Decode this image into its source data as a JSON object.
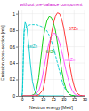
{
  "chart_data": {
    "type": "line",
    "title": "without pre-balance component",
    "x_label": "Neutron energy [MeV]",
    "y_label": "Emission cross-section [mb]",
    "xlim": [
      -2,
      30
    ],
    "ylim": [
      0.0,
      1.05
    ],
    "xticks": [
      0,
      5,
      10,
      15,
      20,
      25,
      30
    ],
    "yticks": [
      0,
      0.2,
      0.4,
      0.6,
      0.8,
      1
    ],
    "grid": true,
    "series": [
      {
        "color": "#00cccc",
        "line_style": "dashed",
        "x": [
          0,
          0.3,
          0.5,
          0.8,
          1,
          2,
          3,
          4,
          5,
          6,
          7,
          8,
          9,
          10,
          11,
          12,
          13,
          14,
          15,
          16,
          17,
          18,
          19,
          20,
          21,
          22,
          23,
          24,
          25,
          26,
          27,
          28,
          29,
          30
        ],
        "values": [
          0.0,
          0.05,
          0.35,
          0.65,
          0.78,
          0.84,
          0.86,
          0.87,
          0.87,
          0.87,
          0.87,
          0.86,
          0.85,
          0.84,
          0.82,
          0.79,
          0.74,
          0.68,
          0.6,
          0.5,
          0.4,
          0.3,
          0.2,
          0.12,
          0.07,
          0.035,
          0.015,
          0.005,
          0.002,
          0.001,
          0.0,
          0.0,
          0.0,
          0.0
        ]
      },
      {
        "color": "#00cccc",
        "line_style": "solid",
        "x": [
          0,
          0.2,
          0.5,
          0.8,
          1.0,
          1.5,
          2.0,
          2.5,
          3.0,
          3.5,
          4,
          5,
          6,
          7,
          8,
          9,
          10,
          12,
          14,
          16,
          18,
          20
        ],
        "values": [
          0.0,
          0.05,
          0.3,
          0.62,
          0.8,
          0.9,
          0.87,
          0.8,
          0.68,
          0.55,
          0.4,
          0.18,
          0.07,
          0.025,
          0.008,
          0.003,
          0.001,
          0.0,
          0.0,
          0.0,
          0.0,
          0.0
        ]
      },
      {
        "color": "#00cc00",
        "line_style": "solid",
        "x": [
          0,
          2,
          4,
          6,
          7,
          8,
          9,
          10,
          11,
          12,
          13,
          14,
          15,
          16,
          17,
          18,
          19,
          20,
          21,
          22,
          23,
          24,
          25,
          26,
          27
        ],
        "values": [
          0.0,
          0.0,
          0.0,
          0.02,
          0.08,
          0.22,
          0.45,
          0.67,
          0.82,
          0.92,
          0.97,
          0.96,
          0.9,
          0.8,
          0.65,
          0.48,
          0.32,
          0.18,
          0.09,
          0.04,
          0.015,
          0.005,
          0.001,
          0.0,
          0.0
        ]
      },
      {
        "color": "#ff44ff",
        "line_style": "solid",
        "x": [
          0,
          4,
          6,
          8,
          9,
          10,
          11,
          12,
          13,
          14,
          15,
          16,
          17,
          18,
          19,
          20,
          21,
          22,
          23,
          24,
          25,
          26,
          27,
          28,
          29,
          30
        ],
        "values": [
          0.0,
          0.0,
          0.01,
          0.06,
          0.14,
          0.26,
          0.4,
          0.54,
          0.65,
          0.72,
          0.76,
          0.76,
          0.72,
          0.65,
          0.55,
          0.44,
          0.32,
          0.22,
          0.13,
          0.07,
          0.03,
          0.012,
          0.004,
          0.001,
          0.0,
          0.0
        ]
      },
      {
        "color": "#ff2222",
        "line_style": "solid",
        "x": [
          0,
          6,
          8,
          10,
          11,
          12,
          13,
          14,
          15,
          16,
          17,
          18,
          19,
          20,
          21,
          22,
          23,
          24,
          25,
          26,
          27,
          28,
          29,
          30
        ],
        "values": [
          0.0,
          0.0,
          0.01,
          0.07,
          0.18,
          0.36,
          0.56,
          0.74,
          0.88,
          0.97,
          1.01,
          1.0,
          0.94,
          0.83,
          0.68,
          0.52,
          0.36,
          0.22,
          0.12,
          0.05,
          0.02,
          0.006,
          0.002,
          0.0
        ]
      }
    ],
    "annotations": [
      {
        "text": "67Zn",
        "x": 22.5,
        "y": 0.8,
        "color": "#ff2222"
      },
      {
        "text": "natZn",
        "x": 20.5,
        "y": 0.42,
        "color": "#ff44ff"
      },
      {
        "text": "64Zn",
        "x": 11.5,
        "y": 0.52,
        "color": "#22bb22"
      },
      {
        "text": "natZn",
        "x": 2.5,
        "y": 0.58,
        "color": "#00bbbb"
      }
    ]
  }
}
